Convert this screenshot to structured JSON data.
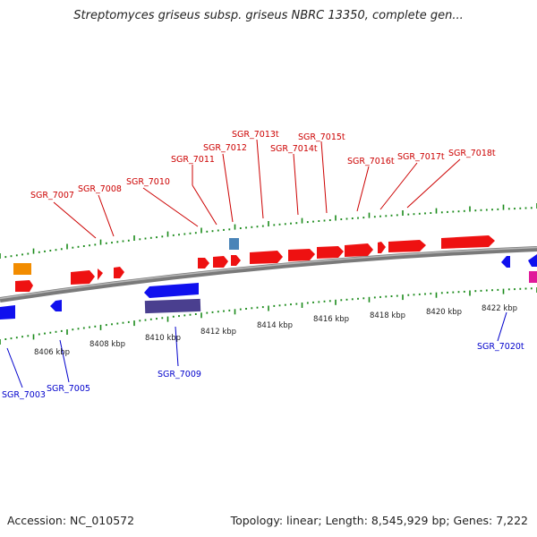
{
  "title": "Streptomyces griseus subsp. griseus NBRC 13350, complete gen...",
  "footer": {
    "accession": "Accession: NC_010572",
    "topology": "Topology: linear; Length: 8,545,929 bp; Genes: 7,222"
  },
  "colors": {
    "forward_gene": "#ee1111",
    "reverse_gene": "#1010ee",
    "rrna_like": "#4a3f8f",
    "orange_feature": "#f28c00",
    "steel_feature": "#4a84b8",
    "magenta_feature": "#e01a9a",
    "backbone": "#888888",
    "tick": "#1a8a1a",
    "forward_label": "#cc0000",
    "reverse_label": "#0000cc"
  },
  "tick_labels": [
    "8406 kbp",
    "8408 kbp",
    "8410 kbp",
    "8412 kbp",
    "8414 kbp",
    "8416 kbp",
    "8418 kbp",
    "8420 kbp",
    "8422 kbp"
  ],
  "forward_labels": [
    "SGR_7007",
    "SGR_7008",
    "SGR_7010",
    "SGR_7011",
    "SGR_7012",
    "SGR_7013t",
    "SGR_7014t",
    "SGR_7015t",
    "SGR_7016t",
    "SGR_7017t",
    "SGR_7018t"
  ],
  "reverse_labels": [
    "SGR_7003",
    "SGR_7005",
    "SGR_7009",
    "SGR_7020t"
  ]
}
